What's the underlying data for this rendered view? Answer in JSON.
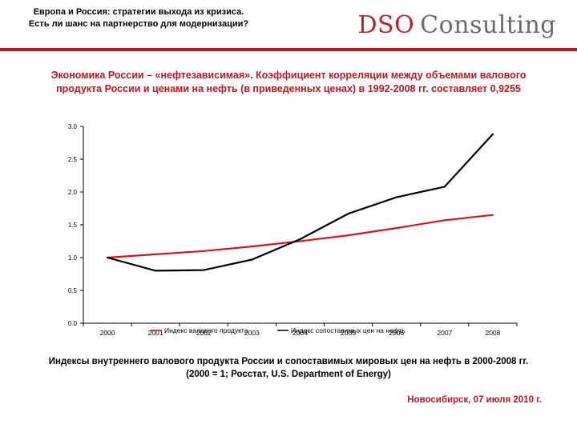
{
  "header": {
    "line1": "Европа и Россия: стратегии выхода из кризиса.",
    "line2": "Есть ли шанс на партнерство для модернизации?"
  },
  "brand": {
    "part1": "DSO",
    "part2": "Consulting"
  },
  "subtitle": {
    "line1": "Экономика России – «нефтезависимая». Коэффициент корреляции между объемами валового",
    "line2": "продукта России и ценами на нефть (в приведенных ценах) в 1992-2008 гг. составляет 0,9255"
  },
  "chart_data": {
    "type": "line",
    "x": [
      "2000",
      "2001",
      "2002",
      "2003",
      "2004",
      "2005",
      "2006",
      "2007",
      "2008"
    ],
    "series": [
      {
        "name": "Индекс валового продукта",
        "values": [
          1.0,
          1.05,
          1.1,
          1.17,
          1.25,
          1.34,
          1.45,
          1.57,
          1.65
        ],
        "color": "#d9141e"
      },
      {
        "name": "Индекс сопоставимых цен на нефть",
        "values": [
          1.0,
          0.8,
          0.81,
          0.97,
          1.28,
          1.67,
          1.92,
          2.08,
          2.88
        ],
        "color": "#000000"
      }
    ],
    "yticks": [
      "0.0",
      "0.5",
      "1.0",
      "1.5",
      "2.0",
      "2.5",
      "3.0"
    ],
    "ylim": [
      0,
      3
    ],
    "title": "",
    "xlabel": "",
    "ylabel": ""
  },
  "caption": {
    "line1": "Индексы внутреннего валового продукта России и сопоставимых мировых цен на нефть в 2000-2008 гг.",
    "line2": "(2000 = 1; Росстат, U.S. Department of Energy)"
  },
  "footer": "Новосибирск, 07 июля 2010 г."
}
